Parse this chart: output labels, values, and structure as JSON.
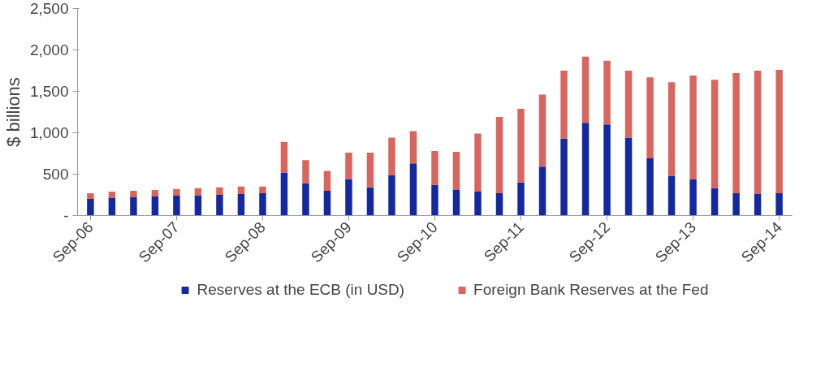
{
  "chart_data": {
    "type": "bar",
    "stacked": true,
    "ylabel": "$ billions",
    "categories": [
      "Sep-06",
      null,
      null,
      null,
      "Sep-07",
      null,
      null,
      null,
      "Sep-08",
      null,
      null,
      null,
      "Sep-09",
      null,
      null,
      null,
      "Sep-10",
      null,
      null,
      null,
      "Sep-11",
      null,
      null,
      null,
      "Sep-12",
      null,
      null,
      null,
      "Sep-13",
      null,
      null,
      null,
      "Sep-14"
    ],
    "series": [
      {
        "name": "Reserves at the ECB (in USD)",
        "color": "#1428a0",
        "values": [
          200,
          210,
          220,
          230,
          240,
          240,
          250,
          260,
          270,
          520,
          390,
          300,
          440,
          340,
          490,
          630,
          370,
          310,
          290,
          270,
          400,
          590,
          930,
          1120,
          1100,
          940,
          690,
          480,
          440,
          330,
          270,
          260,
          270
        ]
      },
      {
        "name": "Foreign Bank Reserves at the Fed",
        "color": "#d9665e",
        "values": [
          70,
          80,
          80,
          80,
          80,
          90,
          90,
          90,
          80,
          370,
          280,
          240,
          320,
          420,
          450,
          390,
          410,
          460,
          700,
          920,
          890,
          870,
          820,
          800,
          770,
          810,
          980,
          1130,
          1250,
          1310,
          1450,
          1490,
          1490
        ]
      }
    ],
    "ylim": [
      0,
      2500
    ],
    "yticks": [
      {
        "value": 0,
        "label": "-"
      },
      500,
      {
        "value": 1000,
        "label": "1,000"
      },
      {
        "value": 1500,
        "label": "1,500"
      },
      {
        "value": 2000,
        "label": "2,000"
      },
      {
        "value": 2500,
        "label": "2,500"
      }
    ],
    "legend": "bottom",
    "grid": false
  }
}
